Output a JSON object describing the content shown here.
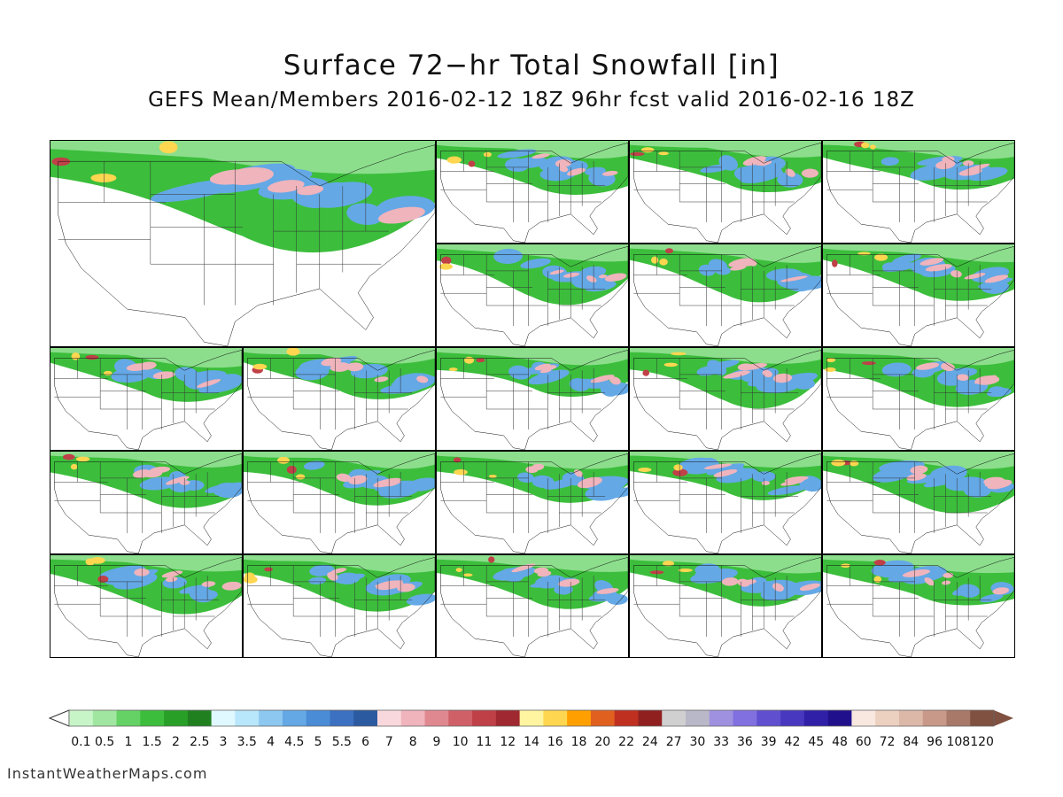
{
  "title": "Surface 72−hr Total Snowfall [in]",
  "subtitle": "GEFS Mean/Members 2016-02-12 18Z 96hr fcst valid 2016-02-16 18Z",
  "credit": "InstantWeatherMaps.com",
  "panels": {
    "count_members": 20,
    "layout": "large mean panel top-left spanning 2x2, members in 5-column grid"
  },
  "colorbar": {
    "labels": [
      "0.1",
      "0.5",
      "1",
      "1.5",
      "2",
      "2.5",
      "3",
      "3.5",
      "4",
      "4.5",
      "5",
      "5.5",
      "6",
      "7",
      "8",
      "9",
      "10",
      "11",
      "12",
      "14",
      "16",
      "18",
      "20",
      "22",
      "24",
      "27",
      "30",
      "33",
      "36",
      "39",
      "42",
      "45",
      "48",
      "60",
      "72",
      "84",
      "96",
      "108",
      "120"
    ],
    "colors": [
      "#ffffff",
      "#c8f5c8",
      "#a0e6a0",
      "#64d264",
      "#3cbe3c",
      "#28a028",
      "#208020",
      "#e0f8ff",
      "#b8e6fa",
      "#8cc8f0",
      "#64a8e6",
      "#4a8cd6",
      "#3c70c0",
      "#2c5aa0",
      "#f8d8dc",
      "#f0b4bc",
      "#e08890",
      "#d06068",
      "#c04048",
      "#a02830",
      "#fff5a0",
      "#ffd650",
      "#ffa000",
      "#e06020",
      "#c03020",
      "#902020",
      "#d0d0d0",
      "#b8b8c8",
      "#a090e0",
      "#8070e0",
      "#6050d0",
      "#4838c0",
      "#3020a8",
      "#20108c",
      "#f8e8e0",
      "#ecd0c0",
      "#dcb8a8",
      "#c89888",
      "#a87868",
      "#805040"
    ]
  },
  "colors": {
    "snow_green_light": "#a0e6a0",
    "snow_green": "#3cbe3c",
    "snow_blue": "#64a8e6",
    "snow_pink": "#f0b4bc",
    "snow_red": "#c04048",
    "snow_yellow": "#ffd650"
  }
}
